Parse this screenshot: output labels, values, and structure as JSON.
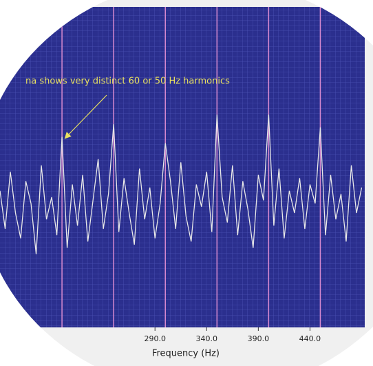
{
  "chart_data": {
    "type": "line",
    "annotation": "na shows very distinct 60 or 50 Hz harmonics",
    "xlabel": "Frequency (Hz)",
    "xlim": [
      140,
      493
    ],
    "ylim": [
      0,
      100
    ],
    "xticks": [
      {
        "value": 290,
        "label": "290.0"
      },
      {
        "value": 340,
        "label": "340.0"
      },
      {
        "value": 390,
        "label": "390.0"
      },
      {
        "value": 440,
        "label": "440.0"
      }
    ],
    "harmonics": [
      200,
      250,
      300,
      350,
      400,
      450
    ],
    "harmonic_color": "#d88ad0",
    "background": "#2b2f8e",
    "grid": true,
    "series": [
      {
        "color": "#e8e8e8",
        "x": [
          140,
          145,
          150,
          155,
          160,
          165,
          170,
          175,
          180,
          185,
          190,
          195,
          200,
          205,
          210,
          215,
          220,
          225,
          230,
          235,
          240,
          245,
          250,
          255,
          260,
          265,
          270,
          275,
          280,
          285,
          290,
          295,
          300,
          305,
          310,
          315,
          320,
          325,
          330,
          335,
          340,
          345,
          350,
          355,
          360,
          365,
          370,
          375,
          380,
          385,
          390,
          395,
          400,
          405,
          410,
          415,
          420,
          425,
          430,
          435,
          440,
          445,
          450,
          455,
          460,
          465,
          470,
          475,
          480,
          485,
          490
        ],
        "values": [
          42,
          30,
          48,
          35,
          27,
          45,
          38,
          22,
          50,
          33,
          40,
          28,
          59,
          24,
          44,
          31,
          47,
          26,
          39,
          52,
          30,
          41,
          63,
          29,
          46,
          35,
          25,
          49,
          33,
          43,
          27,
          38,
          57,
          45,
          30,
          51,
          34,
          26,
          44,
          37,
          48,
          29,
          66,
          40,
          32,
          50,
          28,
          45,
          36,
          24,
          47,
          39,
          66,
          31,
          49,
          27,
          42,
          35,
          46,
          30,
          44,
          38,
          62,
          28,
          47,
          33,
          41,
          26,
          50,
          35,
          43
        ]
      }
    ]
  }
}
